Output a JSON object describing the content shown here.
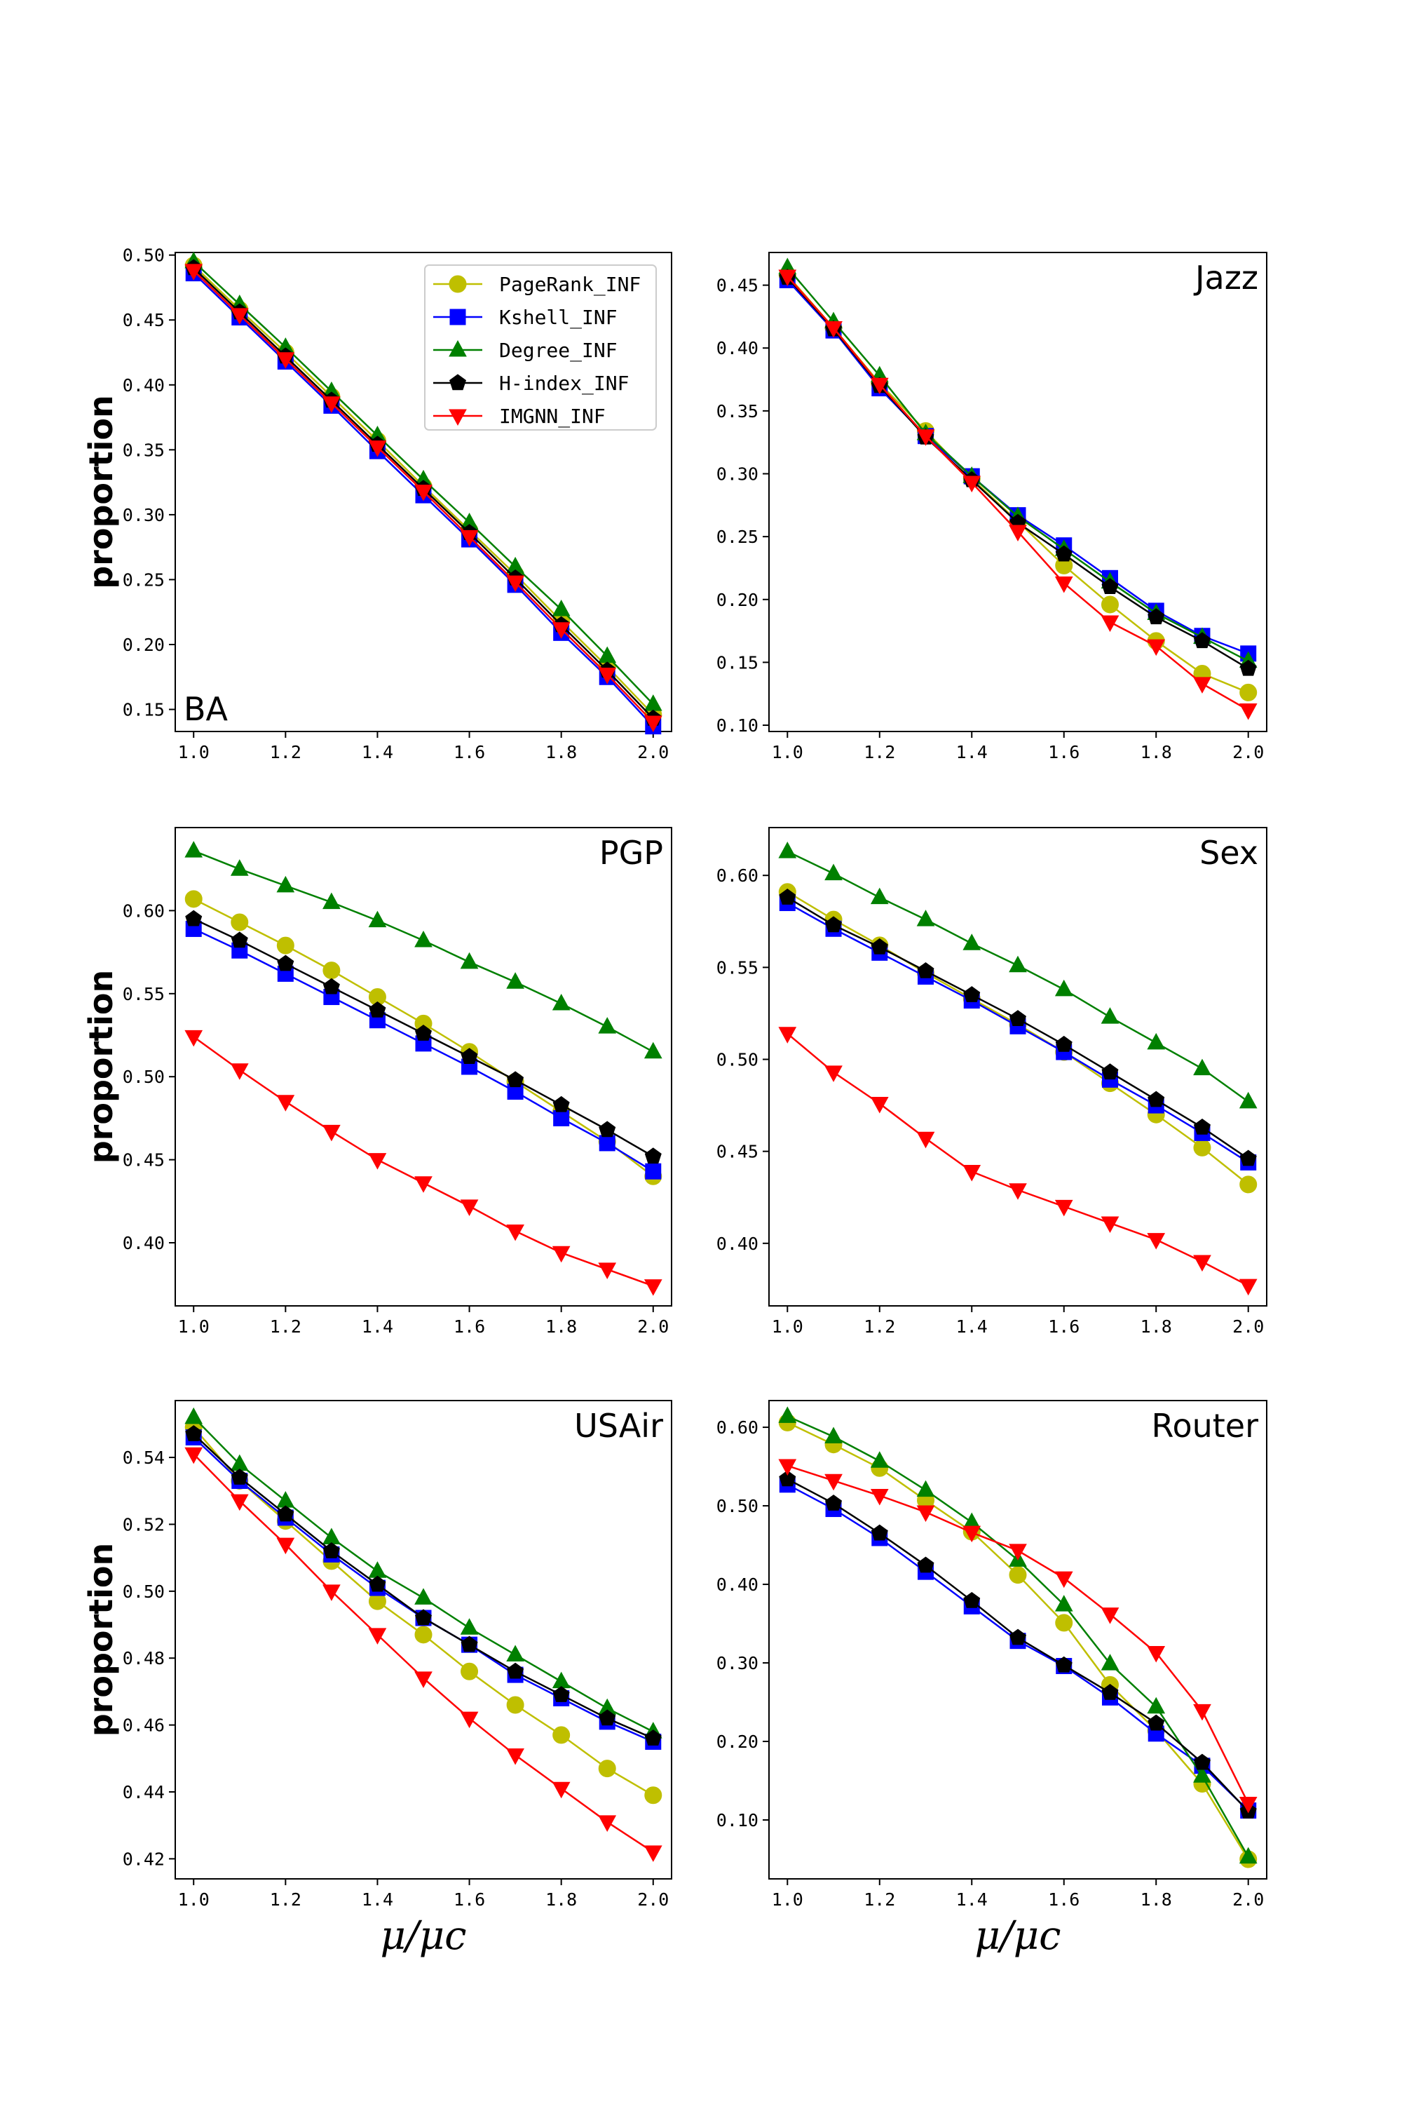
{
  "chart_data": [
    {
      "type": "line",
      "title": "BA",
      "title_position": "bottom-left",
      "xlabel": "",
      "ylabel": "proportion",
      "xlim": [
        0.96,
        2.04
      ],
      "ylim": [
        0.133,
        0.502
      ],
      "xticks": [
        1.0,
        1.2,
        1.4,
        1.6,
        1.8,
        2.0
      ],
      "xtick_labels": [
        "1.0",
        "1.2",
        "1.4",
        "1.6",
        "1.8",
        "2.0"
      ],
      "yticks": [
        0.15,
        0.2,
        0.25,
        0.3,
        0.35,
        0.4,
        0.45,
        0.5
      ],
      "ytick_labels": [
        "0.15",
        "0.20",
        "0.25",
        "0.30",
        "0.35",
        "0.40",
        "0.45",
        "0.50"
      ],
      "x": [
        1.0,
        1.1,
        1.2,
        1.3,
        1.4,
        1.5,
        1.6,
        1.7,
        1.8,
        1.9,
        2.0
      ],
      "series": [
        {
          "name": "PageRank_INF",
          "values": [
            0.492,
            0.458,
            0.425,
            0.391,
            0.357,
            0.322,
            0.288,
            0.254,
            0.218,
            0.183,
            0.146
          ]
        },
        {
          "name": "Kshell_INF",
          "values": [
            0.486,
            0.452,
            0.418,
            0.384,
            0.349,
            0.315,
            0.281,
            0.246,
            0.209,
            0.175,
            0.137
          ]
        },
        {
          "name": "Degree_INF",
          "values": [
            0.495,
            0.462,
            0.429,
            0.395,
            0.361,
            0.327,
            0.294,
            0.26,
            0.227,
            0.191,
            0.154
          ]
        },
        {
          "name": "H-index_INF",
          "values": [
            0.49,
            0.456,
            0.422,
            0.388,
            0.354,
            0.32,
            0.286,
            0.251,
            0.215,
            0.18,
            0.143
          ]
        },
        {
          "name": "IMGNN_INF",
          "values": [
            0.488,
            0.454,
            0.42,
            0.386,
            0.352,
            0.318,
            0.283,
            0.248,
            0.212,
            0.177,
            0.14
          ]
        }
      ],
      "legend": {
        "position": "top-right",
        "entries": [
          "PageRank_INF",
          "Kshell_INF",
          "Degree_INF",
          "H-index_INF",
          "IMGNN_INF"
        ]
      }
    },
    {
      "type": "line",
      "title": "Jazz",
      "title_position": "top-right",
      "xlabel": "",
      "ylabel": "",
      "xlim": [
        0.96,
        2.04
      ],
      "ylim": [
        0.095,
        0.476
      ],
      "xticks": [
        1.0,
        1.2,
        1.4,
        1.6,
        1.8,
        2.0
      ],
      "xtick_labels": [
        "1.0",
        "1.2",
        "1.4",
        "1.6",
        "1.8",
        "2.0"
      ],
      "yticks": [
        0.1,
        0.15,
        0.2,
        0.25,
        0.3,
        0.35,
        0.4,
        0.45
      ],
      "ytick_labels": [
        "0.10",
        "0.15",
        "0.20",
        "0.25",
        "0.30",
        "0.35",
        "0.40",
        "0.45"
      ],
      "x": [
        1.0,
        1.1,
        1.2,
        1.3,
        1.4,
        1.5,
        1.6,
        1.7,
        1.8,
        1.9,
        2.0
      ],
      "series": [
        {
          "name": "PageRank_INF",
          "values": [
            0.458,
            0.416,
            0.372,
            0.334,
            0.296,
            0.262,
            0.227,
            0.196,
            0.167,
            0.141,
            0.126
          ]
        },
        {
          "name": "Kshell_INF",
          "values": [
            0.454,
            0.414,
            0.368,
            0.33,
            0.298,
            0.267,
            0.243,
            0.217,
            0.191,
            0.171,
            0.157
          ]
        },
        {
          "name": "Degree_INF",
          "values": [
            0.464,
            0.421,
            0.378,
            0.332,
            0.298,
            0.266,
            0.24,
            0.214,
            0.189,
            0.17,
            0.151
          ]
        },
        {
          "name": "H-index_INF",
          "values": [
            0.456,
            0.415,
            0.37,
            0.329,
            0.295,
            0.261,
            0.236,
            0.21,
            0.186,
            0.167,
            0.145
          ]
        },
        {
          "name": "IMGNN_INF",
          "values": [
            0.457,
            0.416,
            0.371,
            0.33,
            0.293,
            0.254,
            0.213,
            0.182,
            0.163,
            0.133,
            0.112
          ]
        }
      ]
    },
    {
      "type": "line",
      "title": "PGP",
      "title_position": "top-right",
      "xlabel": "",
      "ylabel": "proportion",
      "xlim": [
        0.96,
        2.04
      ],
      "ylim": [
        0.362,
        0.65
      ],
      "xticks": [
        1.0,
        1.2,
        1.4,
        1.6,
        1.8,
        2.0
      ],
      "xtick_labels": [
        "1.0",
        "1.2",
        "1.4",
        "1.6",
        "1.8",
        "2.0"
      ],
      "yticks": [
        0.4,
        0.45,
        0.5,
        0.55,
        0.6
      ],
      "ytick_labels": [
        "0.40",
        "0.45",
        "0.50",
        "0.55",
        "0.60"
      ],
      "x": [
        1.0,
        1.1,
        1.2,
        1.3,
        1.4,
        1.5,
        1.6,
        1.7,
        1.8,
        1.9,
        2.0
      ],
      "series": [
        {
          "name": "PageRank_INF",
          "values": [
            0.607,
            0.593,
            0.579,
            0.564,
            0.548,
            0.532,
            0.515,
            0.497,
            0.479,
            0.461,
            0.44
          ]
        },
        {
          "name": "Kshell_INF",
          "values": [
            0.589,
            0.576,
            0.562,
            0.548,
            0.534,
            0.52,
            0.506,
            0.491,
            0.475,
            0.46,
            0.443
          ]
        },
        {
          "name": "Degree_INF",
          "values": [
            0.636,
            0.625,
            0.615,
            0.605,
            0.594,
            0.582,
            0.569,
            0.557,
            0.544,
            0.53,
            0.515
          ]
        },
        {
          "name": "H-index_INF",
          "values": [
            0.595,
            0.582,
            0.568,
            0.554,
            0.54,
            0.526,
            0.512,
            0.498,
            0.483,
            0.468,
            0.452
          ]
        },
        {
          "name": "IMGNN_INF",
          "values": [
            0.524,
            0.504,
            0.485,
            0.467,
            0.45,
            0.436,
            0.422,
            0.407,
            0.394,
            0.384,
            0.374
          ]
        }
      ]
    },
    {
      "type": "line",
      "title": "Sex",
      "title_position": "top-right",
      "xlabel": "",
      "ylabel": "",
      "xlim": [
        0.96,
        2.04
      ],
      "ylim": [
        0.366,
        0.626
      ],
      "xticks": [
        1.0,
        1.2,
        1.4,
        1.6,
        1.8,
        2.0
      ],
      "xtick_labels": [
        "1.0",
        "1.2",
        "1.4",
        "1.6",
        "1.8",
        "2.0"
      ],
      "yticks": [
        0.4,
        0.45,
        0.5,
        0.55,
        0.6
      ],
      "ytick_labels": [
        "0.40",
        "0.45",
        "0.50",
        "0.55",
        "0.60"
      ],
      "x": [
        1.0,
        1.1,
        1.2,
        1.3,
        1.4,
        1.5,
        1.6,
        1.7,
        1.8,
        1.9,
        2.0
      ],
      "series": [
        {
          "name": "PageRank_INF",
          "values": [
            0.591,
            0.576,
            0.562,
            0.547,
            0.533,
            0.519,
            0.504,
            0.487,
            0.47,
            0.452,
            0.432
          ]
        },
        {
          "name": "Kshell_INF",
          "values": [
            0.585,
            0.571,
            0.558,
            0.545,
            0.532,
            0.518,
            0.504,
            0.489,
            0.475,
            0.46,
            0.444
          ]
        },
        {
          "name": "Degree_INF",
          "values": [
            0.613,
            0.601,
            0.588,
            0.576,
            0.563,
            0.551,
            0.538,
            0.523,
            0.509,
            0.495,
            0.477
          ]
        },
        {
          "name": "H-index_INF",
          "values": [
            0.588,
            0.573,
            0.561,
            0.548,
            0.535,
            0.522,
            0.508,
            0.493,
            0.478,
            0.463,
            0.446
          ]
        },
        {
          "name": "IMGNN_INF",
          "values": [
            0.514,
            0.493,
            0.476,
            0.457,
            0.439,
            0.429,
            0.42,
            0.411,
            0.402,
            0.39,
            0.377
          ]
        }
      ]
    },
    {
      "type": "line",
      "title": "USAir",
      "title_position": "top-right",
      "xlabel": "μ/μc",
      "ylabel": "proportion",
      "xlim": [
        0.96,
        2.04
      ],
      "ylim": [
        0.414,
        0.557
      ],
      "xticks": [
        1.0,
        1.2,
        1.4,
        1.6,
        1.8,
        2.0
      ],
      "xtick_labels": [
        "1.0",
        "1.2",
        "1.4",
        "1.6",
        "1.8",
        "2.0"
      ],
      "yticks": [
        0.42,
        0.44,
        0.46,
        0.48,
        0.5,
        0.52,
        0.54
      ],
      "ytick_labels": [
        "0.42",
        "0.44",
        "0.46",
        "0.48",
        "0.50",
        "0.52",
        "0.54"
      ],
      "x": [
        1.0,
        1.1,
        1.2,
        1.3,
        1.4,
        1.5,
        1.6,
        1.7,
        1.8,
        1.9,
        2.0
      ],
      "series": [
        {
          "name": "PageRank_INF",
          "values": [
            0.549,
            0.533,
            0.521,
            0.509,
            0.497,
            0.487,
            0.476,
            0.466,
            0.457,
            0.447,
            0.439
          ]
        },
        {
          "name": "Kshell_INF",
          "values": [
            0.546,
            0.533,
            0.522,
            0.511,
            0.501,
            0.492,
            0.484,
            0.475,
            0.468,
            0.461,
            0.455
          ]
        },
        {
          "name": "Degree_INF",
          "values": [
            0.552,
            0.538,
            0.527,
            0.516,
            0.506,
            0.498,
            0.489,
            0.481,
            0.473,
            0.465,
            0.458
          ]
        },
        {
          "name": "H-index_INF",
          "values": [
            0.547,
            0.534,
            0.523,
            0.512,
            0.502,
            0.492,
            0.484,
            0.476,
            0.469,
            0.462,
            0.456
          ]
        },
        {
          "name": "IMGNN_INF",
          "values": [
            0.541,
            0.527,
            0.514,
            0.5,
            0.487,
            0.474,
            0.462,
            0.451,
            0.441,
            0.431,
            0.422
          ]
        }
      ]
    },
    {
      "type": "line",
      "title": "Router",
      "title_position": "top-right",
      "xlabel": "μ/μc",
      "ylabel": "",
      "xlim": [
        0.96,
        2.04
      ],
      "ylim": [
        0.025,
        0.634
      ],
      "xticks": [
        1.0,
        1.2,
        1.4,
        1.6,
        1.8,
        2.0
      ],
      "xtick_labels": [
        "1.0",
        "1.2",
        "1.4",
        "1.6",
        "1.8",
        "2.0"
      ],
      "yticks": [
        0.1,
        0.2,
        0.3,
        0.4,
        0.5,
        0.6
      ],
      "ytick_labels": [
        "0.10",
        "0.20",
        "0.30",
        "0.40",
        "0.50",
        "0.60"
      ],
      "x": [
        1.0,
        1.1,
        1.2,
        1.3,
        1.4,
        1.5,
        1.6,
        1.7,
        1.8,
        1.9,
        2.0
      ],
      "series": [
        {
          "name": "PageRank_INF",
          "values": [
            0.606,
            0.578,
            0.548,
            0.507,
            0.467,
            0.412,
            0.351,
            0.272,
            0.214,
            0.146,
            0.05
          ]
        },
        {
          "name": "Kshell_INF",
          "values": [
            0.527,
            0.496,
            0.459,
            0.416,
            0.372,
            0.328,
            0.296,
            0.256,
            0.21,
            0.169,
            0.112
          ]
        },
        {
          "name": "Degree_INF",
          "values": [
            0.614,
            0.588,
            0.557,
            0.52,
            0.479,
            0.431,
            0.374,
            0.299,
            0.244,
            0.156,
            0.053
          ]
        },
        {
          "name": "H-index_INF",
          "values": [
            0.534,
            0.503,
            0.465,
            0.424,
            0.379,
            0.332,
            0.297,
            0.262,
            0.223,
            0.173,
            0.111
          ]
        },
        {
          "name": "IMGNN_INF",
          "values": [
            0.551,
            0.532,
            0.513,
            0.492,
            0.466,
            0.443,
            0.408,
            0.362,
            0.313,
            0.239,
            0.121
          ]
        }
      ]
    }
  ],
  "series_styles": [
    {
      "name": "PageRank_INF",
      "color": "#bfbf00",
      "marker": "circle"
    },
    {
      "name": "Kshell_INF",
      "color": "#0000ff",
      "marker": "square"
    },
    {
      "name": "Degree_INF",
      "color": "#008000",
      "marker": "triangle-up"
    },
    {
      "name": "H-index_INF",
      "color": "#000000",
      "marker": "pentagon"
    },
    {
      "name": "IMGNN_INF",
      "color": "#ff0000",
      "marker": "triangle-down"
    }
  ]
}
